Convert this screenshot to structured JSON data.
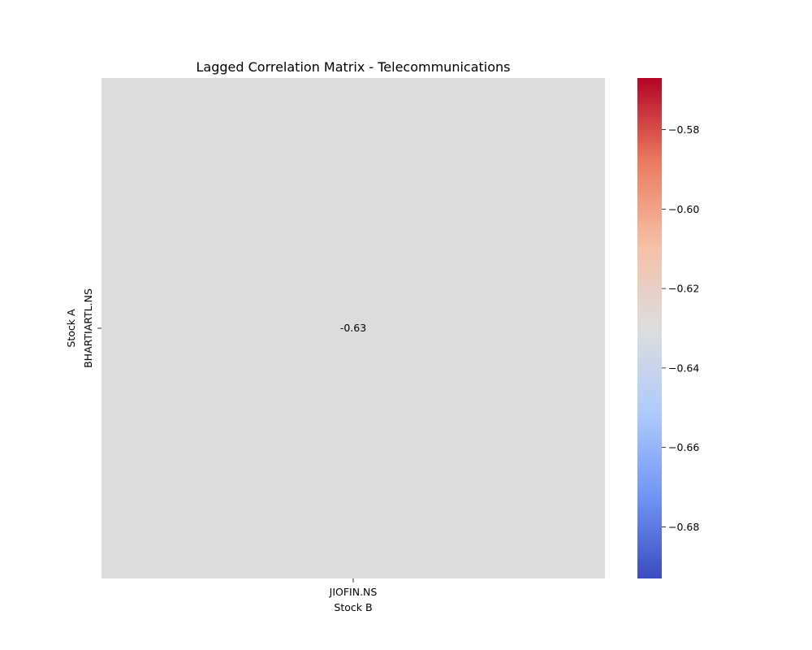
{
  "chart_data": {
    "type": "heatmap",
    "title": "Lagged Correlation Matrix - Telecommunications",
    "xlabel": "Stock B",
    "ylabel": "Stock A",
    "x_categories": [
      "JIOFIN.NS"
    ],
    "y_categories": [
      "BHARTIARTL.NS"
    ],
    "values": [
      [
        -0.63
      ]
    ],
    "annotations": [
      [
        "-0.63"
      ]
    ],
    "cell_color": "#dcdcdc",
    "colormap": "coolwarm",
    "colorbar": {
      "range": [
        -0.693,
        -0.567
      ],
      "ticks": [
        -0.58,
        -0.6,
        -0.62,
        -0.64,
        -0.66,
        -0.68
      ],
      "tick_labels": [
        "−0.58",
        "−0.60",
        "−0.62",
        "−0.64",
        "−0.66",
        "−0.68"
      ],
      "colors": [
        "#3b4cc0",
        "#7396f5",
        "#b0cbfc",
        "#dcdddd",
        "#f6bfa6",
        "#ea7b60",
        "#b40426"
      ]
    }
  }
}
